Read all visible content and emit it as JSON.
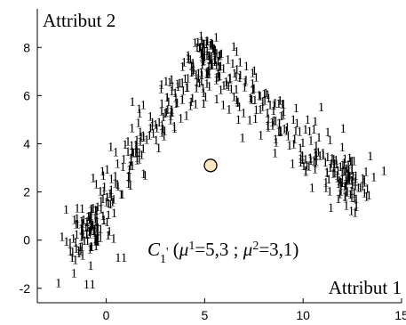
{
  "chart_data": {
    "type": "scatter",
    "xlabel": "Attribut 1",
    "ylabel": "Attribut 2",
    "xlim": [
      -3.5,
      15
    ],
    "ylim": [
      -2.6,
      9.6
    ],
    "xticks": [
      0,
      5,
      10,
      15
    ],
    "yticks": [
      -2,
      0,
      2,
      4,
      6,
      8
    ],
    "point_label": "1",
    "series_color": "#000000",
    "centroid": {
      "x": 5.3,
      "y": 3.1,
      "fill": "#fde6c0",
      "stroke": "#000000"
    },
    "annotation": {
      "cluster": "C",
      "cluster_sub": "1",
      "prime": "'",
      "open": " (",
      "mu": "μ",
      "sup1": "1",
      "val1": "=5,3 ; ",
      "sup2": "2",
      "val2": "=3,1)"
    },
    "clusters": [
      {
        "x1": -2.0,
        "y1": -0.5,
        "x2": 5.2,
        "y2": 7.5,
        "count": 210,
        "spread": 0.6
      },
      {
        "x1": 5.2,
        "y1": 7.5,
        "x2": 12.5,
        "y2": 2.0,
        "count": 190,
        "spread": 0.6
      },
      {
        "x": 5.2,
        "y": 7.3,
        "count": 55,
        "spread": 0.45
      },
      {
        "x": 12.3,
        "y": 2.2,
        "count": 60,
        "spread": 0.55
      },
      {
        "x": -0.7,
        "y": 0.2,
        "count": 60,
        "spread": 0.5
      }
    ],
    "outliers": [
      {
        "x": 1.1,
        "y": 3.5
      },
      {
        "x": 14.1,
        "y": 2.7
      },
      {
        "x": 0.6,
        "y": -0.9
      },
      {
        "x": 0.9,
        "y": -0.9
      },
      {
        "x": -1.0,
        "y": -2.0
      },
      {
        "x": -0.7,
        "y": -2.0
      }
    ]
  }
}
